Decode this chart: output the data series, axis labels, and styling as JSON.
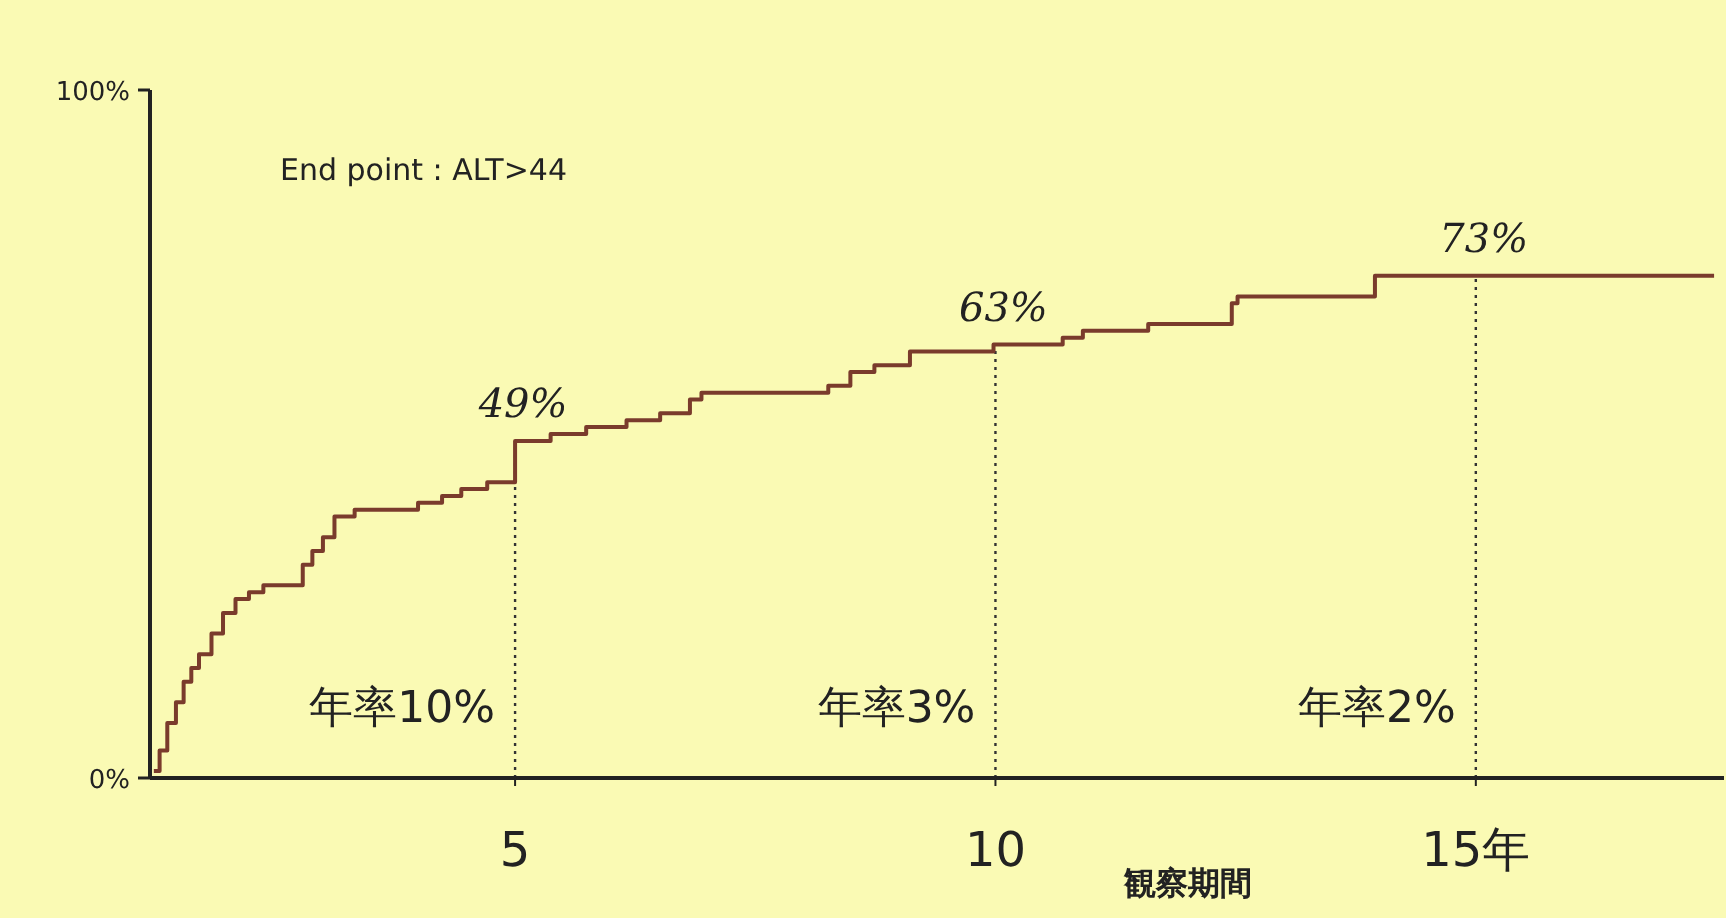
{
  "chart_data": {
    "type": "step",
    "xlabel": "観察期間",
    "x": [
      1.24,
      1.3,
      1.38,
      1.47,
      1.55,
      1.63,
      1.71,
      1.84,
      1.96,
      2.09,
      2.23,
      2.38,
      2.79,
      2.89,
      3.0,
      3.12,
      3.33,
      3.99,
      4.24,
      4.44,
      4.71,
      5.0,
      5.37,
      5.74,
      6.16,
      6.51,
      6.82,
      6.94,
      8.26,
      8.49,
      8.74,
      9.11,
      9.98,
      10.7,
      10.91,
      11.59,
      12.46,
      12.52,
      13.95,
      17.48
    ],
    "series": [
      {
        "color": "#7a3b2c",
        "values": [
          1,
          4,
          8,
          11,
          14,
          16,
          18,
          21,
          24,
          26,
          27,
          28,
          31,
          33,
          35,
          38,
          39,
          40,
          41,
          42,
          43,
          49,
          50,
          51,
          52,
          53,
          55,
          56,
          57,
          59,
          60,
          62,
          63,
          64,
          65,
          66,
          69,
          70,
          73,
          73
        ]
      }
    ],
    "xlim": [
      1.2,
      17.5
    ],
    "ylim": [
      0,
      100
    ],
    "xticks": [
      5,
      10,
      {
        "value": 15,
        "label": "15年"
      }
    ],
    "yticks": [
      {
        "value": 0,
        "label": "0%"
      },
      {
        "value": 100,
        "label": "100%"
      }
    ],
    "ref_lines": [
      {
        "axis": "x",
        "value": 5,
        "line_style": "dotted"
      },
      {
        "axis": "x",
        "value": 10,
        "line_style": "dotted"
      },
      {
        "axis": "x",
        "value": 15,
        "line_style": "dotted"
      }
    ],
    "annotations": [
      "End point : ALT>44",
      {
        "text": "49%",
        "x": 5,
        "y": 49
      },
      {
        "text": "63%",
        "x": 10,
        "y": 63
      },
      {
        "text": "73%",
        "x": 15,
        "y": 73
      },
      "年率10%",
      "年率3%",
      "年率2%"
    ],
    "grid": false,
    "marker": "none",
    "line_style": "solid"
  }
}
